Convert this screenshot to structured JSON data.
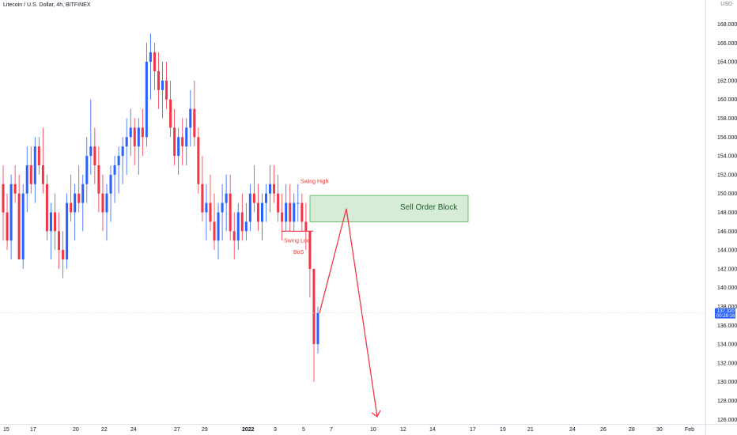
{
  "header": {
    "title": "Litecoin / U.S. Dollar, 4h, BITFINEX",
    "currency": "USD"
  },
  "chart_data": {
    "type": "candlestick",
    "ylim": [
      125,
      171
    ],
    "y_ticks": [
      126,
      128,
      130,
      132,
      134,
      136,
      138,
      140,
      142,
      144,
      146,
      148,
      150,
      152,
      154,
      156,
      158,
      160,
      162,
      164,
      166,
      168
    ],
    "y_tick_labels": [
      "126.000",
      "128.000",
      "130.000",
      "132.000",
      "134.000",
      "136.000",
      "138.000",
      "140.000",
      "142.000",
      "144.000",
      "146.000",
      "148.000",
      "150.000",
      "152.000",
      "154.000",
      "156.000",
      "158.000",
      "160.000",
      "162.000",
      "164.000",
      "166.000",
      "168.000"
    ],
    "x_ticks": [
      "15",
      "17",
      "20",
      "22",
      "24",
      "27",
      "29",
      "2022",
      "3",
      "5",
      "7",
      "10",
      "12",
      "14",
      "17",
      "19",
      "21",
      "24",
      "26",
      "28",
      "30",
      "Feb"
    ],
    "current_price": "137.320",
    "countdown": "00:29:16",
    "candles": [
      [
        151,
        153,
        145,
        148
      ],
      [
        148,
        150,
        144,
        145
      ],
      [
        145,
        152,
        143,
        151
      ],
      [
        151,
        153,
        149,
        150
      ],
      [
        150,
        152,
        143,
        143
      ],
      [
        143,
        151,
        142,
        150
      ],
      [
        150,
        155,
        148,
        153
      ],
      [
        153,
        155,
        150,
        151
      ],
      [
        151,
        156,
        149,
        155
      ],
      [
        155,
        156,
        152,
        153
      ],
      [
        153,
        157,
        150,
        151
      ],
      [
        151,
        152,
        145,
        146
      ],
      [
        146,
        149,
        143,
        148
      ],
      [
        148,
        150,
        144,
        146
      ],
      [
        146,
        148,
        142,
        144
      ],
      [
        144,
        146,
        141,
        143
      ],
      [
        143,
        150,
        142,
        149
      ],
      [
        149,
        152,
        147,
        148
      ],
      [
        148,
        151,
        145,
        150
      ],
      [
        150,
        153,
        148,
        149
      ],
      [
        149,
        152,
        146,
        151
      ],
      [
        151,
        156,
        149,
        154
      ],
      [
        154,
        160,
        152,
        155
      ],
      [
        155,
        157,
        151,
        153
      ],
      [
        153,
        155,
        148,
        150
      ],
      [
        150,
        152,
        146,
        148
      ],
      [
        148,
        151,
        145,
        150
      ],
      [
        150,
        153,
        147,
        152
      ],
      [
        152,
        154,
        149,
        153
      ],
      [
        153,
        155,
        150,
        154
      ],
      [
        154,
        156,
        151,
        155
      ],
      [
        155,
        158,
        152,
        156
      ],
      [
        156,
        159,
        154,
        157
      ],
      [
        157,
        158,
        153,
        155
      ],
      [
        155,
        158,
        152,
        157
      ],
      [
        157,
        159,
        154,
        156
      ],
      [
        156,
        166,
        155,
        164
      ],
      [
        164,
        167,
        160,
        165
      ],
      [
        165,
        166,
        161,
        163
      ],
      [
        163,
        165,
        159,
        161
      ],
      [
        161,
        164,
        158,
        162
      ],
      [
        162,
        164,
        159,
        160
      ],
      [
        160,
        162,
        156,
        157
      ],
      [
        157,
        159,
        153,
        154
      ],
      [
        154,
        157,
        152,
        156
      ],
      [
        156,
        158,
        153,
        155
      ],
      [
        155,
        158,
        153,
        157
      ],
      [
        157,
        161,
        155,
        159
      ],
      [
        159,
        162,
        155,
        156
      ],
      [
        156,
        157,
        150,
        151
      ],
      [
        151,
        154,
        147,
        148
      ],
      [
        148,
        151,
        145,
        149
      ],
      [
        149,
        152,
        146,
        147
      ],
      [
        147,
        150,
        144,
        145
      ],
      [
        145,
        149,
        143,
        148
      ],
      [
        148,
        151,
        145,
        149
      ],
      [
        149,
        152,
        146,
        150
      ],
      [
        150,
        152,
        145,
        146
      ],
      [
        146,
        148,
        143,
        145
      ],
      [
        145,
        149,
        144,
        148
      ],
      [
        148,
        150,
        145,
        146
      ],
      [
        146,
        149,
        145,
        147
      ],
      [
        147,
        151,
        146,
        150
      ],
      [
        150,
        153,
        148,
        149
      ],
      [
        149,
        151,
        146,
        147
      ],
      [
        147,
        150,
        145,
        149
      ],
      [
        149,
        151,
        147,
        150
      ],
      [
        150,
        153,
        148,
        151
      ],
      [
        151,
        153,
        149,
        150
      ],
      [
        150,
        152,
        147,
        148
      ],
      [
        148,
        150,
        145,
        147
      ],
      [
        147,
        151,
        146,
        149
      ],
      [
        149,
        151,
        146,
        147
      ],
      [
        147,
        150,
        146,
        149
      ],
      [
        149,
        151,
        147,
        149
      ],
      [
        149,
        150,
        146,
        147
      ],
      [
        147,
        149,
        144,
        146
      ],
      [
        146,
        146,
        139,
        142
      ],
      [
        142,
        142,
        130,
        134
      ],
      [
        134,
        138,
        133,
        137.32
      ]
    ],
    "annotations": {
      "swing_high": "Swing High",
      "swing_low": "Swing Low",
      "bos": "BoS",
      "order_block_label": "Sell Order Block",
      "order_block_range": [
        147,
        149.8
      ]
    },
    "colors": {
      "up": "#2962ff",
      "down": "#f23645",
      "arrow": "#f23645",
      "zone_fill": "#c8e6c9",
      "zone_border": "#4caf50"
    }
  }
}
